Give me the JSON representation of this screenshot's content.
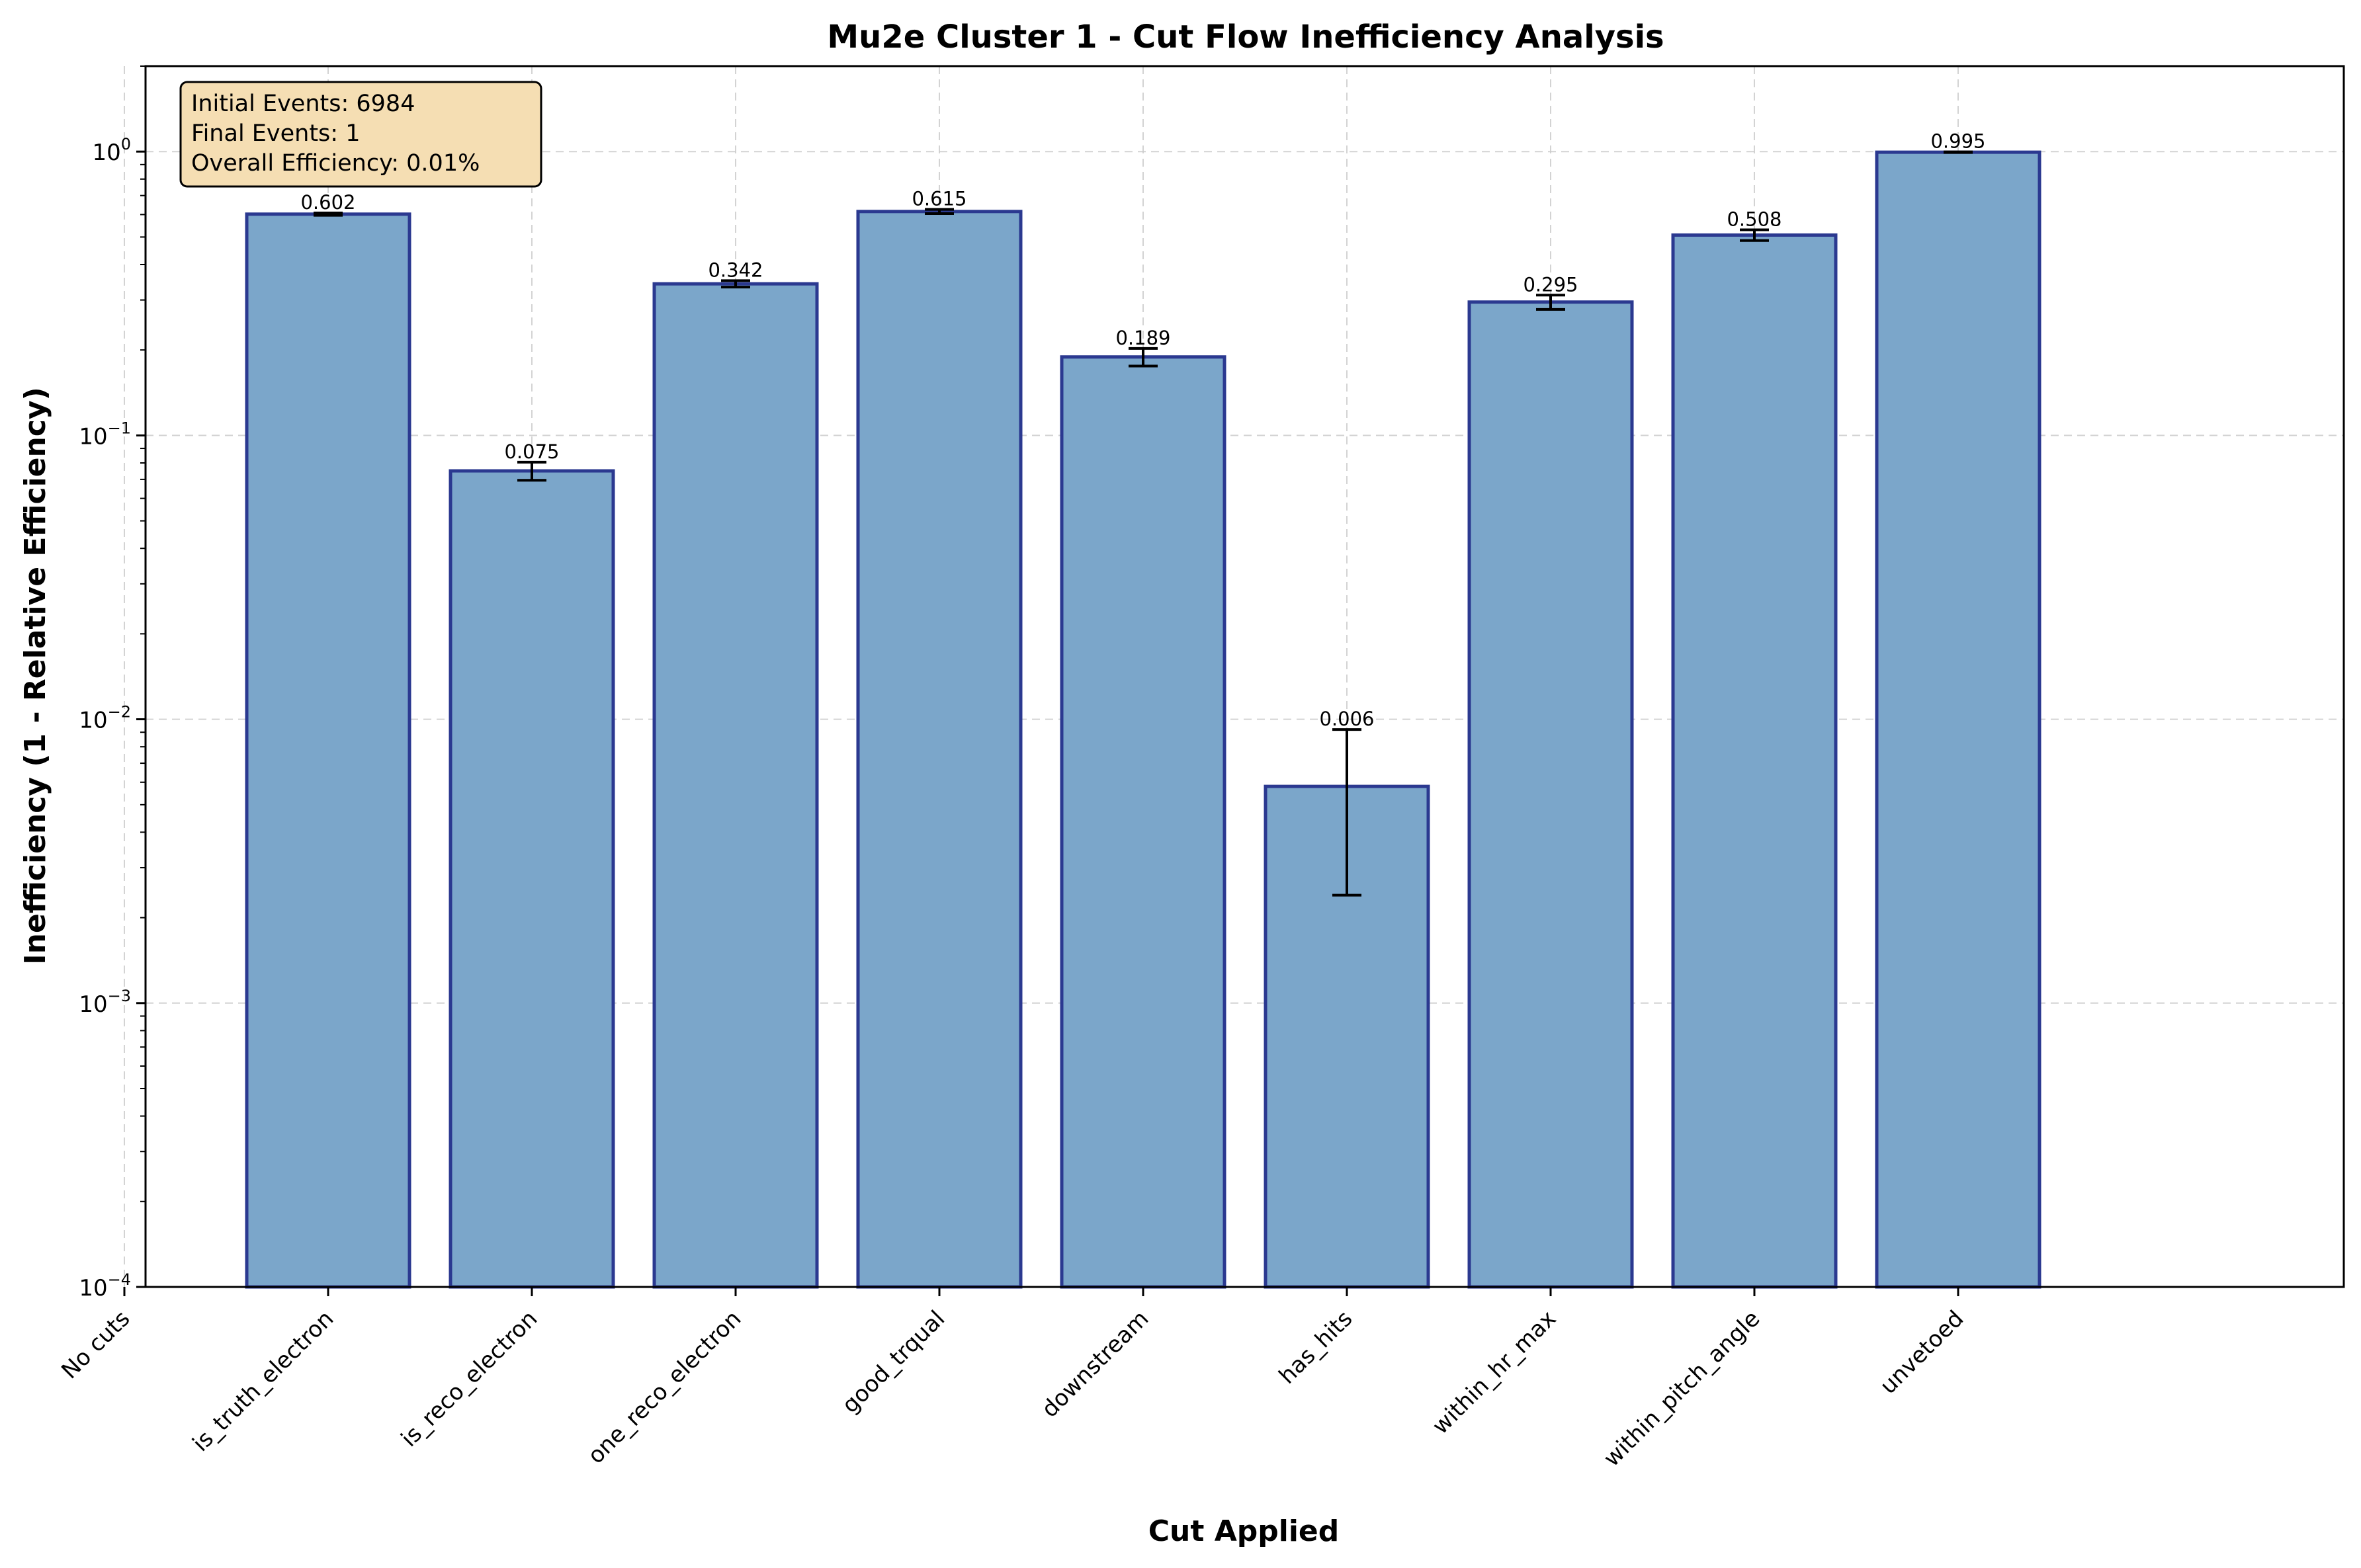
{
  "chart_data": {
    "type": "bar",
    "title": "Mu2e Cluster 1 - Cut Flow Inefficiency Analysis",
    "xlabel": "Cut Applied",
    "ylabel": "Inefficiency (1 - Relative Efficiency)",
    "yscale": "log",
    "ylim": [
      0.0001,
      2
    ],
    "yticks": [
      {
        "value": 0.0001,
        "base": "10",
        "exp": "−4"
      },
      {
        "value": 0.001,
        "base": "10",
        "exp": "−3"
      },
      {
        "value": 0.01,
        "base": "10",
        "exp": "−2"
      },
      {
        "value": 0.1,
        "base": "10",
        "exp": "−1"
      },
      {
        "value": 1,
        "base": "10",
        "exp": "0"
      }
    ],
    "grid": true,
    "categories": [
      "No cuts",
      "is_truth_electron",
      "is_reco_electron",
      "one_reco_electron",
      "good_trqual",
      "downstream",
      "has_hits",
      "within_hr_max",
      "within_pitch_angle",
      "unvetoed"
    ],
    "values": [
      null,
      0.602,
      0.075,
      0.342,
      0.615,
      0.189,
      0.0058,
      0.295,
      0.508,
      0.995
    ],
    "errors": [
      null,
      0.006,
      0.0055,
      0.009,
      0.0105,
      0.0135,
      0.0034,
      0.017,
      0.022,
      0.0025
    ],
    "data_labels": [
      "",
      "0.602",
      "0.075",
      "0.342",
      "0.615",
      "0.189",
      "0.006",
      "0.295",
      "0.508",
      "0.995"
    ],
    "colors": {
      "bar_fill": "#7ba6ca",
      "bar_edge": "#2b3990",
      "annotation_bg": "#f5deb3"
    },
    "annotation": {
      "lines": [
        "Initial Events: 6984",
        "Final Events: 1",
        "Overall Efficiency: 0.01%"
      ],
      "placement": "top-left"
    }
  }
}
